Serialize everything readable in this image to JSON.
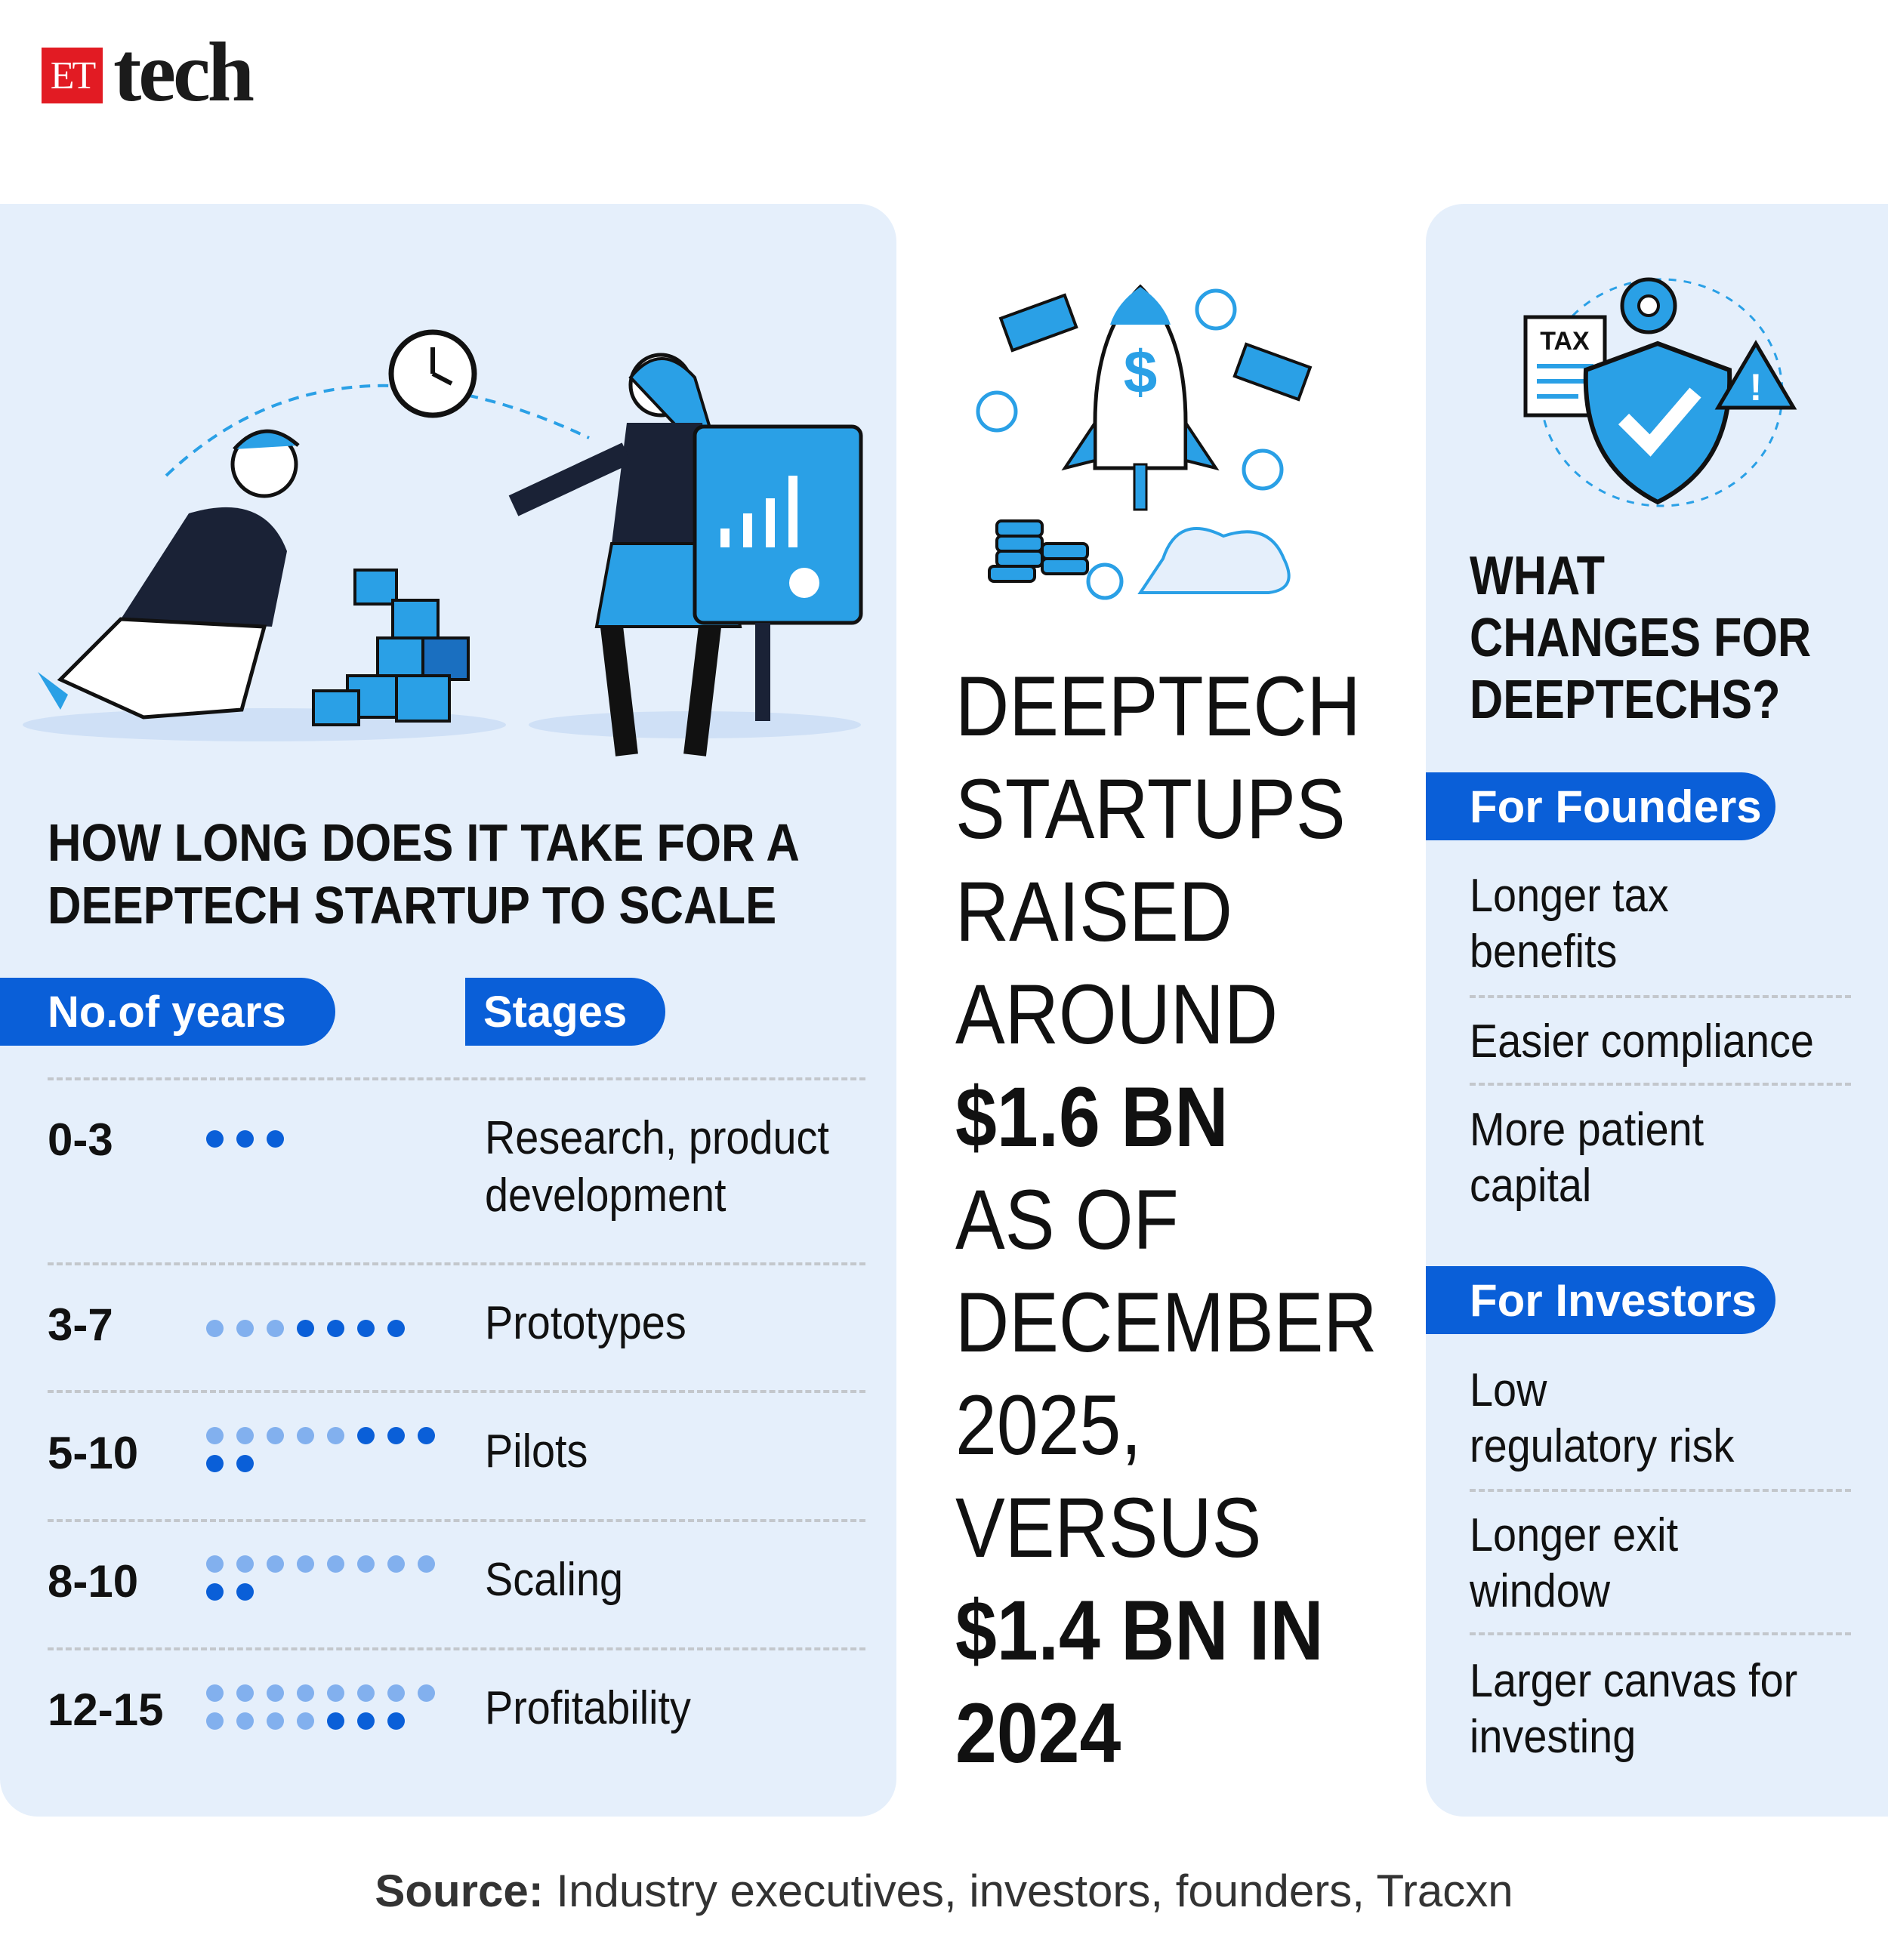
{
  "logo": {
    "et": "ET",
    "tech": "tech"
  },
  "left": {
    "heading_lines": [
      "HOW LONG DOES IT TAKE FOR A",
      "DEEPTECH STARTUP TO SCALE"
    ],
    "col_years": "No.of years",
    "col_stages": "Stages",
    "rows": [
      {
        "years": "0-3",
        "stage_lines": [
          "Research, product",
          "development"
        ],
        "light_dots": 0,
        "dark_dots": 3
      },
      {
        "years": "3-7",
        "stage_lines": [
          "Prototypes"
        ],
        "light_dots": 3,
        "dark_dots": 4
      },
      {
        "years": "5-10",
        "stage_lines": [
          "Pilots"
        ],
        "light_dots": 5,
        "dark_dots": 5
      },
      {
        "years": "8-10",
        "stage_lines": [
          "Scaling"
        ],
        "light_dots": 8,
        "dark_dots": 2
      },
      {
        "years": "12-15",
        "stage_lines": [
          "Profitability"
        ],
        "light_dots": 12,
        "dark_dots": 3
      }
    ],
    "dot_colors": {
      "light": "#82b0ee",
      "dark": "#0a5fd8"
    }
  },
  "middle": {
    "lines": [
      {
        "text": "DEEPTECH",
        "bold": false
      },
      {
        "text": "STARTUPS",
        "bold": false
      },
      {
        "text": "RAISED",
        "bold": false
      },
      {
        "text": "AROUND",
        "bold": false
      },
      {
        "text": "$1.6 BN",
        "bold": true
      },
      {
        "text": "AS OF",
        "bold": false
      },
      {
        "text": "DECEMBER",
        "bold": false
      },
      {
        "text": "2025,",
        "bold": false
      },
      {
        "text": "VERSUS",
        "bold": false
      },
      {
        "text": "$1.4 BN IN",
        "bold": true
      },
      {
        "text": "2024",
        "bold": true
      }
    ]
  },
  "right": {
    "heading_lines": [
      "WHAT",
      "CHANGES FOR",
      "DEEPTECHS?"
    ],
    "tax_label": "TAX",
    "founders": {
      "label": "For Founders",
      "items": [
        [
          "Longer tax",
          "benefits"
        ],
        [
          "Easier compliance"
        ],
        [
          "More patient",
          "capital"
        ]
      ]
    },
    "investors": {
      "label": "For Investors",
      "items": [
        [
          "Low",
          "regulatory risk"
        ],
        [
          "Longer exit",
          "window"
        ],
        [
          "Larger canvas for",
          "investing"
        ]
      ]
    }
  },
  "source": {
    "label": "Source:",
    "text": " Industry executives, investors, founders, Tracxn"
  },
  "colors": {
    "accent": "#0a5fd8",
    "panel": "#e5effb",
    "brand_red": "#e21b23"
  }
}
